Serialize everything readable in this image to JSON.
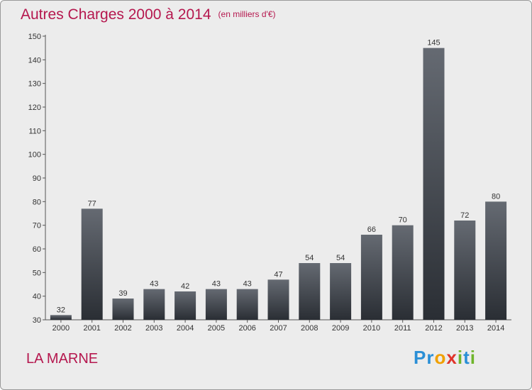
{
  "header": {
    "title": "Autres Charges 2000 à 2014",
    "unit": "(en milliers d'€)"
  },
  "place": "LA MARNE",
  "logo": "Proxiti",
  "colors": {
    "title": "#b5174e",
    "bar_top": "#656a72",
    "bar_bottom": "#2a2e34",
    "background": "#ececec"
  },
  "chart_data": {
    "type": "bar",
    "title": "Autres Charges 2000 à 2014",
    "subtitle": "(en milliers d'€)",
    "categories": [
      "2000",
      "2001",
      "2002",
      "2003",
      "2004",
      "2005",
      "2006",
      "2007",
      "2008",
      "2009",
      "2010",
      "2011",
      "2012",
      "2013",
      "2014"
    ],
    "values": [
      32,
      77,
      39,
      43,
      42,
      43,
      43,
      47,
      54,
      54,
      66,
      70,
      145,
      72,
      80
    ],
    "data_labels": [
      "32",
      "77",
      "39",
      "43",
      "42",
      "43",
      "43",
      "47",
      "54",
      "54",
      "66",
      "70",
      "145",
      "72",
      "80"
    ],
    "yticks": [
      30,
      40,
      50,
      60,
      70,
      80,
      90,
      100,
      110,
      120,
      130,
      140,
      150
    ],
    "ylim": [
      30,
      150
    ],
    "xlabel": "",
    "ylabel": "",
    "grid": false,
    "legend": "none"
  }
}
